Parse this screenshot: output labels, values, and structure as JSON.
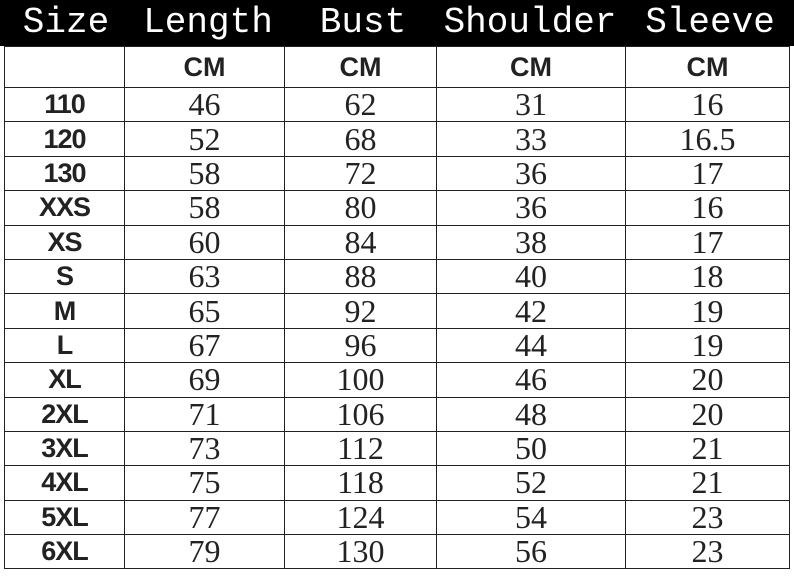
{
  "headers": [
    "Size",
    "Length",
    "Bust",
    "Shoulder",
    "Sleeve"
  ],
  "units": [
    "",
    "CM",
    "CM",
    "CM",
    "CM"
  ],
  "rows": [
    [
      "110",
      "46",
      "62",
      "31",
      "16"
    ],
    [
      "120",
      "52",
      "68",
      "33",
      "16.5"
    ],
    [
      "130",
      "58",
      "72",
      "36",
      "17"
    ],
    [
      "XXS",
      "58",
      "80",
      "36",
      "16"
    ],
    [
      "XS",
      "60",
      "84",
      "38",
      "17"
    ],
    [
      "S",
      "63",
      "88",
      "40",
      "18"
    ],
    [
      "M",
      "65",
      "92",
      "42",
      "19"
    ],
    [
      "L",
      "67",
      "96",
      "44",
      "19"
    ],
    [
      "XL",
      "69",
      "100",
      "46",
      "20"
    ],
    [
      "2XL",
      "71",
      "106",
      "48",
      "20"
    ],
    [
      "3XL",
      "73",
      "112",
      "50",
      "21"
    ],
    [
      "4XL",
      "75",
      "118",
      "52",
      "21"
    ],
    [
      "5XL",
      "77",
      "124",
      "54",
      "23"
    ],
    [
      "6XL",
      "79",
      "130",
      "56",
      "23"
    ]
  ]
}
